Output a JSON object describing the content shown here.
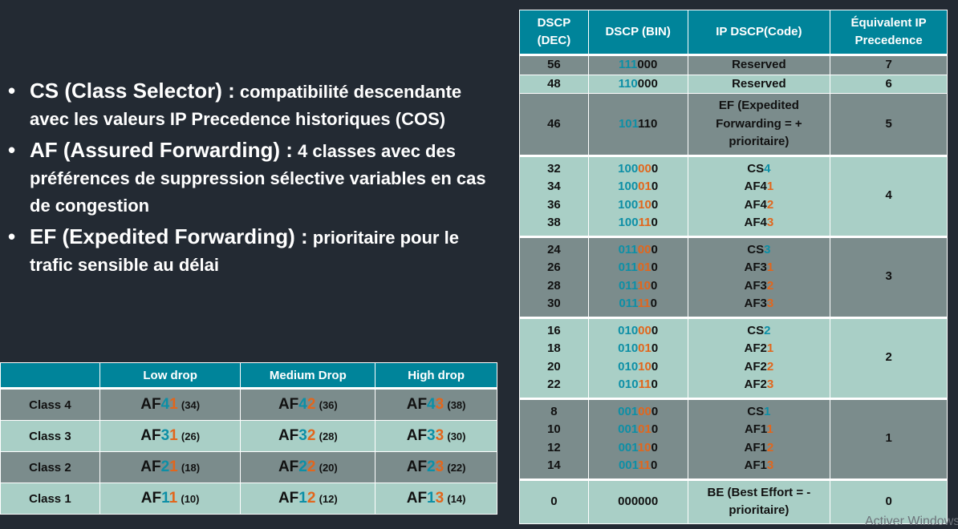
{
  "bullets": [
    {
      "title": "CS (Class Selector) :",
      "text": " compatibilité descendante avec les valeurs IP Precedence historiques (COS)"
    },
    {
      "title": "AF (Assured Forwarding) :",
      "text": " 4 classes avec des préférences de suppression sélective variables en cas de congestion"
    },
    {
      "title": "EF (Expedited Forwarding) :",
      "text": " prioritaire pour le trafic sensible au délai"
    }
  ],
  "dscp_table": {
    "headers": [
      "DSCP (DEC)",
      "DSCP (BIN)",
      "IP DSCP(Code)",
      "Équivalent IP Precedence"
    ],
    "rows": {
      "r56": {
        "dec": "56",
        "bin_a": "111",
        "bin_b": "000",
        "code": "Reserved",
        "prec": "7"
      },
      "r48": {
        "dec": "48",
        "bin_a": "110",
        "bin_b": "000",
        "code": "Reserved",
        "prec": "6"
      },
      "r46": {
        "dec": "46",
        "bin_a": "101",
        "bin_b": "110",
        "code": "EF (Expedited Forwarding = + prioritaire)",
        "prec": "5"
      },
      "g4": {
        "prec": "4",
        "items": [
          {
            "dec": "32",
            "b1": "100",
            "b2": "00",
            "b3": "0",
            "c1": "CS",
            "c2": "4"
          },
          {
            "dec": "34",
            "b1": "100",
            "b2": "01",
            "b3": "0",
            "c1": "AF4",
            "c2": "1"
          },
          {
            "dec": "36",
            "b1": "100",
            "b2": "10",
            "b3": "0",
            "c1": "AF4",
            "c2": "2"
          },
          {
            "dec": "38",
            "b1": "100",
            "b2": "11",
            "b3": "0",
            "c1": "AF4",
            "c2": "3"
          }
        ]
      },
      "g3": {
        "prec": "3",
        "items": [
          {
            "dec": "24",
            "b1": "011",
            "b2": "00",
            "b3": "0",
            "c1": "CS",
            "c2": "3"
          },
          {
            "dec": "26",
            "b1": "011",
            "b2": "01",
            "b3": "0",
            "c1": "AF3",
            "c2": "1"
          },
          {
            "dec": "28",
            "b1": "011",
            "b2": "10",
            "b3": "0",
            "c1": "AF3",
            "c2": "2"
          },
          {
            "dec": "30",
            "b1": "011",
            "b2": "11",
            "b3": "0",
            "c1": "AF3",
            "c2": "3"
          }
        ]
      },
      "g2": {
        "prec": "2",
        "items": [
          {
            "dec": "16",
            "b1": "010",
            "b2": "00",
            "b3": "0",
            "c1": "CS",
            "c2": "2"
          },
          {
            "dec": "18",
            "b1": "010",
            "b2": "01",
            "b3": "0",
            "c1": "AF2",
            "c2": "1"
          },
          {
            "dec": "20",
            "b1": "010",
            "b2": "10",
            "b3": "0",
            "c1": "AF2",
            "c2": "2"
          },
          {
            "dec": "22",
            "b1": "010",
            "b2": "11",
            "b3": "0",
            "c1": "AF2",
            "c2": "3"
          }
        ]
      },
      "g1": {
        "prec": "1",
        "items": [
          {
            "dec": "8",
            "b1": "001",
            "b2": "00",
            "b3": "0",
            "c1": "CS",
            "c2": "1"
          },
          {
            "dec": "10",
            "b1": "001",
            "b2": "01",
            "b3": "0",
            "c1": "AF1",
            "c2": "1"
          },
          {
            "dec": "12",
            "b1": "001",
            "b2": "10",
            "b3": "0",
            "c1": "AF1",
            "c2": "2"
          },
          {
            "dec": "14",
            "b1": "001",
            "b2": "11",
            "b3": "0",
            "c1": "AF1",
            "c2": "3"
          }
        ]
      },
      "r0": {
        "dec": "0",
        "bin": "000000",
        "code": "BE (Best Effort = - prioritaire)",
        "prec": "0"
      }
    }
  },
  "af_table": {
    "headers": [
      "",
      "Low drop",
      "Medium Drop",
      "High drop"
    ],
    "rows": [
      {
        "cls": "Class 4",
        "cells": [
          {
            "a": "AF",
            "b": "4",
            "c": "1",
            "n": "(34)"
          },
          {
            "a": "AF",
            "b": "4",
            "c": "2",
            "n": "(36)"
          },
          {
            "a": "AF",
            "b": "4",
            "c": "3",
            "n": "(38)"
          }
        ]
      },
      {
        "cls": "Class 3",
        "cells": [
          {
            "a": "AF",
            "b": "3",
            "c": "1",
            "n": "(26)"
          },
          {
            "a": "AF",
            "b": "3",
            "c": "2",
            "n": "(28)"
          },
          {
            "a": "AF",
            "b": "3",
            "c": "3",
            "n": "(30)"
          }
        ]
      },
      {
        "cls": "Class 2",
        "cells": [
          {
            "a": "AF",
            "b": "2",
            "c": "1",
            "n": "(18)"
          },
          {
            "a": "AF",
            "b": "2",
            "c": "2",
            "n": "(20)"
          },
          {
            "a": "AF",
            "b": "2",
            "c": "3",
            "n": "(22)"
          }
        ]
      },
      {
        "cls": "Class 1",
        "cells": [
          {
            "a": "AF",
            "b": "1",
            "c": "1",
            "n": "(10)"
          },
          {
            "a": "AF",
            "b": "1",
            "c": "2",
            "n": "(12)"
          },
          {
            "a": "AF",
            "b": "1",
            "c": "3",
            "n": "(14)"
          }
        ]
      }
    ]
  },
  "watermark": "Activer Windows",
  "colors": {
    "background": "#232a33",
    "header": "#00849a",
    "row_dark": "#7b8c8c",
    "row_light": "#a9cfc6",
    "accent_teal": "#0d8fa6",
    "accent_orange": "#e2661c"
  }
}
